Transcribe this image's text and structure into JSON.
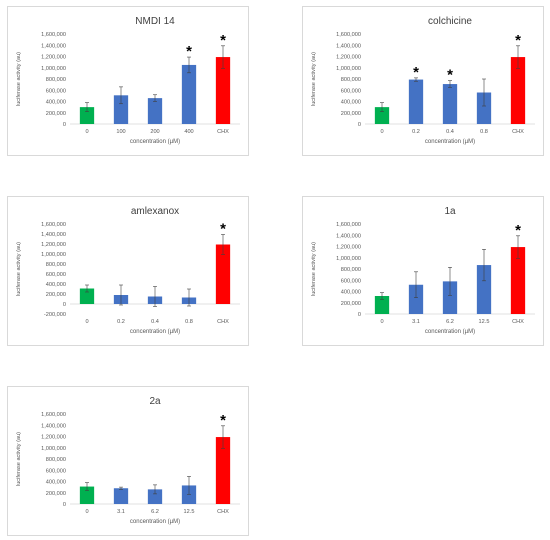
{
  "chart_data": [
    {
      "type": "bar",
      "title": "NMDI 14",
      "xlabel": "concentration (µM)",
      "ylabel": "luciferase activity (au)",
      "categories": [
        "0",
        "100",
        "200",
        "400",
        "CHX"
      ],
      "values": [
        300000,
        510000,
        460000,
        1050000,
        1190000
      ],
      "errors": [
        80000,
        150000,
        60000,
        140000,
        200000
      ],
      "significant": [
        false,
        false,
        false,
        true,
        true
      ],
      "bar_colors": [
        "#00b050",
        "#4472c4",
        "#4472c4",
        "#4472c4",
        "#ff0000"
      ],
      "ylim": [
        0,
        1600000
      ],
      "yticks": [
        0,
        200000,
        400000,
        600000,
        800000,
        1000000,
        1200000,
        1400000,
        1600000
      ],
      "ytick_labels": [
        "0",
        "200,000",
        "400,000",
        "600,000",
        "800,000",
        "1,000,000",
        "1,200,000",
        "1,400,000",
        "1,600,000"
      ],
      "marker": "*",
      "grid": false,
      "legend": "none"
    },
    {
      "type": "bar",
      "title": "colchicine",
      "xlabel": "concentration (µM)",
      "ylabel": "luciferase activity (au)",
      "categories": [
        "0",
        "0.2",
        "0.4",
        "0.8",
        "CHX"
      ],
      "values": [
        300000,
        790000,
        710000,
        560000,
        1190000
      ],
      "errors": [
        80000,
        30000,
        60000,
        240000,
        200000
      ],
      "significant": [
        false,
        true,
        true,
        false,
        true
      ],
      "bar_colors": [
        "#00b050",
        "#4472c4",
        "#4472c4",
        "#4472c4",
        "#ff0000"
      ],
      "ylim": [
        0,
        1600000
      ],
      "yticks": [
        0,
        200000,
        400000,
        600000,
        800000,
        1000000,
        1200000,
        1400000,
        1600000
      ],
      "ytick_labels": [
        "0",
        "200,000",
        "400,000",
        "600,000",
        "800,000",
        "1,000,000",
        "1,200,000",
        "1,400,000",
        "1,600,000"
      ],
      "marker": "*",
      "grid": false,
      "legend": "none"
    },
    {
      "type": "bar",
      "title": "amlexanox",
      "xlabel": "concentration (µM)",
      "ylabel": "luciferase activity (au)",
      "categories": [
        "0",
        "0.2",
        "0.4",
        "0.8",
        "CHX"
      ],
      "values": [
        310000,
        180000,
        150000,
        130000,
        1190000
      ],
      "errors": [
        70000,
        200000,
        200000,
        170000,
        200000
      ],
      "significant": [
        false,
        false,
        false,
        false,
        true
      ],
      "bar_colors": [
        "#00b050",
        "#4472c4",
        "#4472c4",
        "#4472c4",
        "#ff0000"
      ],
      "ylim": [
        -200000,
        1600000
      ],
      "yticks": [
        -200000,
        0,
        200000,
        400000,
        600000,
        800000,
        1000000,
        1200000,
        1400000,
        1600000
      ],
      "ytick_labels": [
        "-200,000",
        "0",
        "200,000",
        "400,000",
        "600,000",
        "800,000",
        "1,000,000",
        "1,200,000",
        "1,400,000",
        "1,600,000"
      ],
      "marker": "*",
      "grid": false,
      "legend": "none"
    },
    {
      "type": "bar",
      "title": "1a",
      "xlabel": "concentration (µM)",
      "ylabel": "luciferase activity (au)",
      "categories": [
        "0",
        "3.1",
        "6.2",
        "12.5",
        "CHX"
      ],
      "values": [
        320000,
        520000,
        580000,
        870000,
        1190000
      ],
      "errors": [
        60000,
        230000,
        250000,
        280000,
        200000
      ],
      "significant": [
        false,
        false,
        false,
        false,
        true
      ],
      "bar_colors": [
        "#00b050",
        "#4472c4",
        "#4472c4",
        "#4472c4",
        "#ff0000"
      ],
      "ylim": [
        0,
        1600000
      ],
      "yticks": [
        0,
        200000,
        400000,
        600000,
        800000,
        1000000,
        1200000,
        1400000,
        1600000
      ],
      "ytick_labels": [
        "0",
        "200,000",
        "400,000",
        "600,000",
        "800,000",
        "1,000,000",
        "1,200,000",
        "1,400,000",
        "1,600,000"
      ],
      "marker": "*",
      "grid": false,
      "legend": "none"
    },
    {
      "type": "bar",
      "title": "2a",
      "xlabel": "concentration (µM)",
      "ylabel": "luciferase activity (au)",
      "categories": [
        "0",
        "3.1",
        "6.2",
        "12.5",
        "CHX"
      ],
      "values": [
        310000,
        280000,
        260000,
        330000,
        1190000
      ],
      "errors": [
        70000,
        20000,
        80000,
        160000,
        200000
      ],
      "significant": [
        false,
        false,
        false,
        false,
        true
      ],
      "bar_colors": [
        "#00b050",
        "#4472c4",
        "#4472c4",
        "#4472c4",
        "#ff0000"
      ],
      "ylim": [
        0,
        1600000
      ],
      "yticks": [
        0,
        200000,
        400000,
        600000,
        800000,
        1000000,
        1200000,
        1400000,
        1600000
      ],
      "ytick_labels": [
        "0",
        "200,000",
        "400,000",
        "600,000",
        "800,000",
        "1,000,000",
        "1,200,000",
        "1,400,000",
        "1,600,000"
      ],
      "marker": "*",
      "grid": false,
      "legend": "none"
    }
  ]
}
